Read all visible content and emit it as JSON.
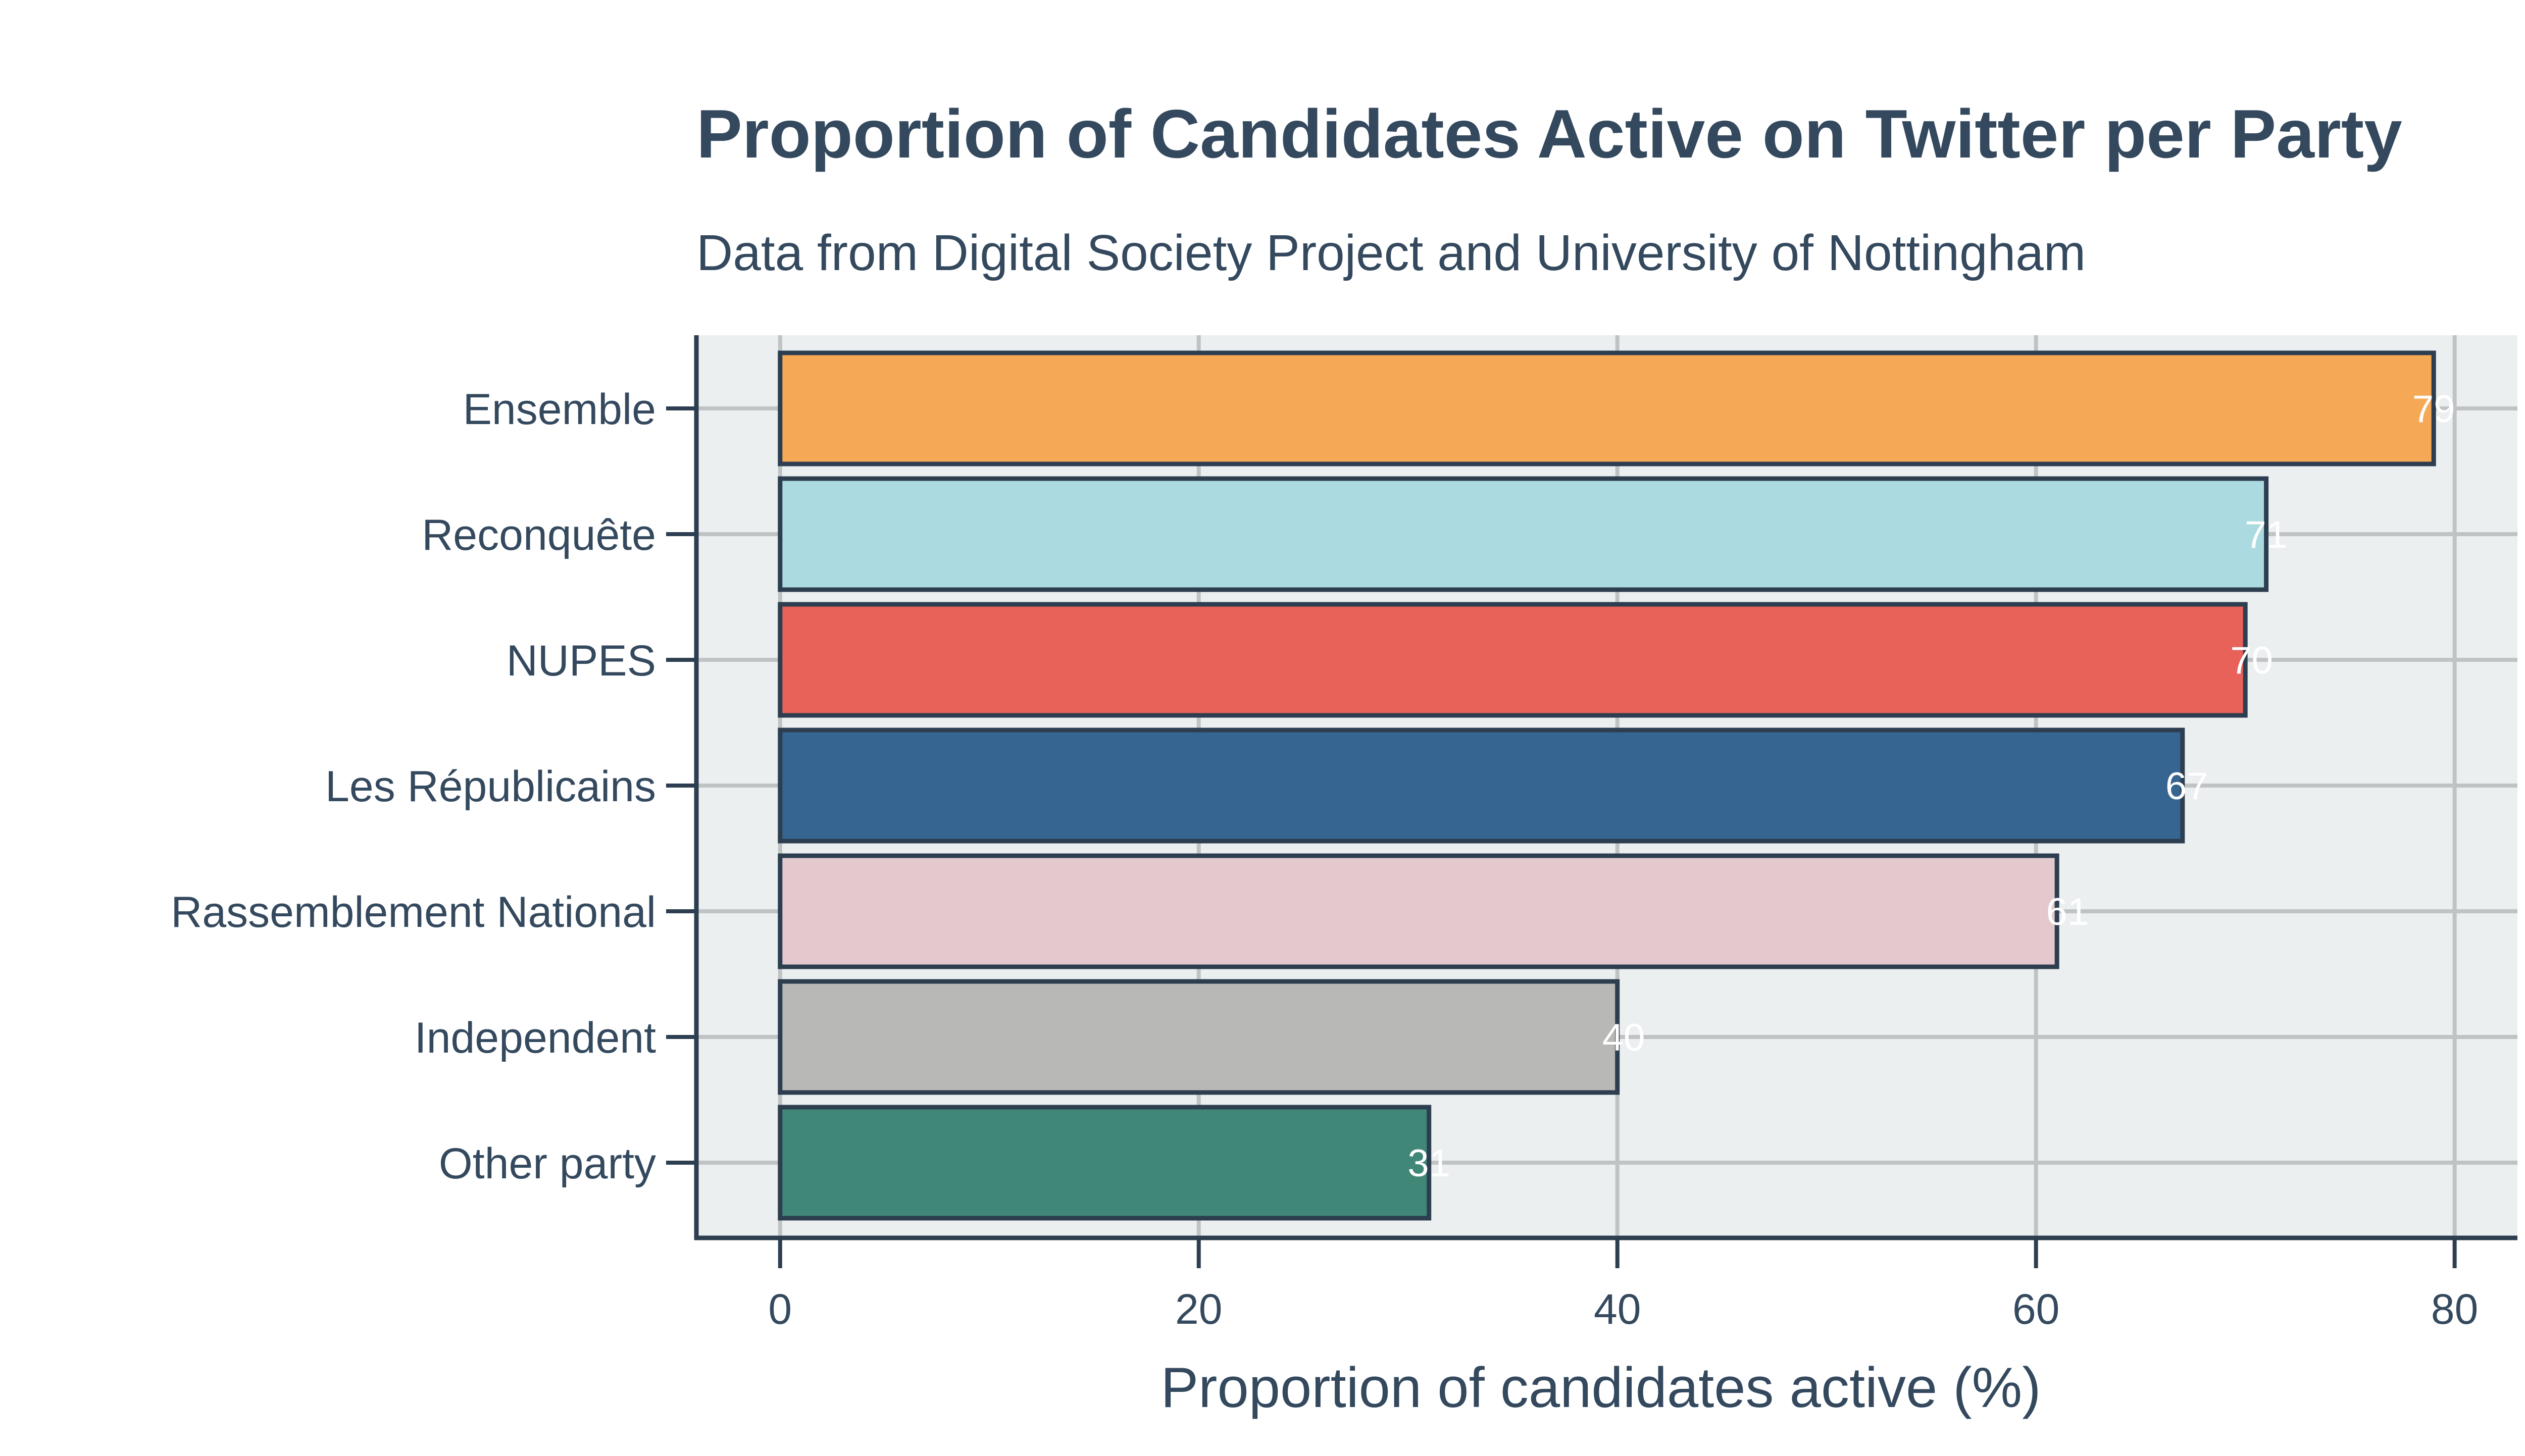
{
  "chart_data": {
    "type": "bar",
    "orientation": "horizontal",
    "title": "Proportion of Candidates Active on Twitter per Party",
    "subtitle": "Data from Digital Society Project and University of Nottingham",
    "xlabel": "Proportion of candidates active (%)",
    "ylabel": "",
    "xlim": [
      -4,
      83
    ],
    "xticks": [
      0,
      20,
      40,
      60,
      80
    ],
    "grid": true,
    "categories": [
      "Ensemble",
      "Reconquête",
      "NUPES",
      "Les Républicains",
      "Rassemblement National",
      "Independent",
      "Other party"
    ],
    "values": [
      79,
      71,
      70,
      67,
      61,
      40,
      31
    ],
    "value_labels": [
      "79",
      "71",
      "70",
      "67",
      "61",
      "40",
      "31"
    ],
    "colors": [
      "#f5a957",
      "#abdbe0",
      "#e8625a",
      "#376591",
      "#e3c9ce",
      "#b8b8b6",
      "#418778"
    ],
    "value_positions": [
      79,
      71,
      70.3,
      67.2,
      61.5,
      40.3,
      31
    ],
    "style": {
      "background": "#ffffff",
      "plot_background": "#ebeff0",
      "grid_color": "#bfc3c4",
      "axis_color": "#2c3e50",
      "text_color": "#34495e",
      "label_color": "#ffffff"
    }
  }
}
